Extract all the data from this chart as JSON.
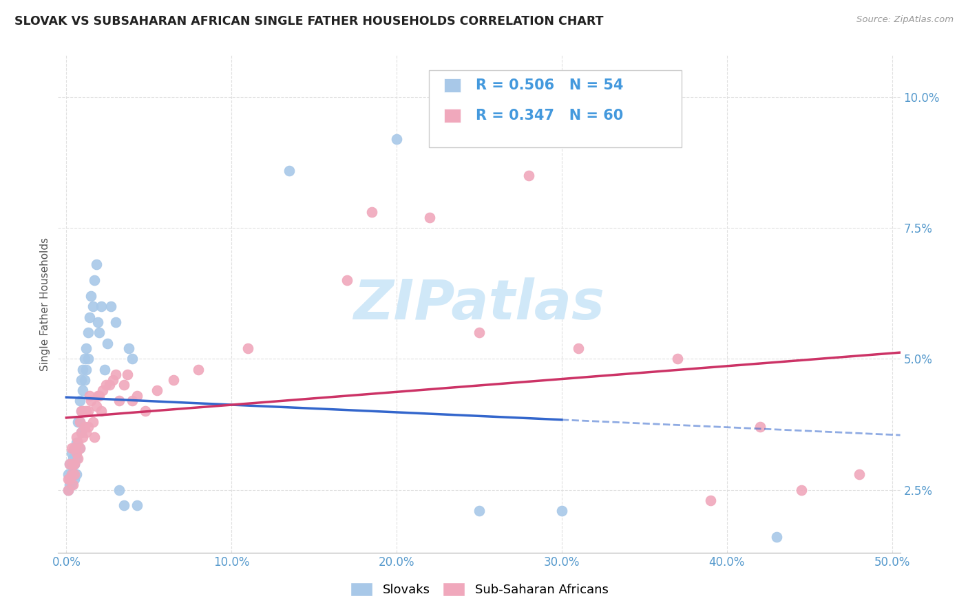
{
  "title": "SLOVAK VS SUBSAHARAN AFRICAN SINGLE FATHER HOUSEHOLDS CORRELATION CHART",
  "source": "Source: ZipAtlas.com",
  "ylabel": "Single Father Households",
  "xlim": [
    -0.005,
    0.505
  ],
  "ylim": [
    0.013,
    0.108
  ],
  "slovak_R": "0.506",
  "slovak_N": "54",
  "subsaharan_R": "0.347",
  "subsaharan_N": "60",
  "blue_scatter_color": "#a8c8e8",
  "pink_scatter_color": "#f0a8bc",
  "blue_line_color": "#3366cc",
  "pink_line_color": "#cc3366",
  "watermark_color": "#d0e8f8",
  "background_color": "#ffffff",
  "grid_color": "#dddddd",
  "stat_color": "#4499dd",
  "tick_color": "#5599cc",
  "title_color": "#222222",
  "ylabel_color": "#555555",
  "source_color": "#999999",
  "x_ticks": [
    0.0,
    0.1,
    0.2,
    0.3,
    0.4,
    0.5
  ],
  "x_tick_labels": [
    "0.0%",
    "10.0%",
    "20.0%",
    "30.0%",
    "40.0%",
    "50.0%"
  ],
  "y_ticks": [
    0.025,
    0.05,
    0.075,
    0.1
  ],
  "y_tick_labels": [
    "2.5%",
    "5.0%",
    "7.5%",
    "10.0%"
  ],
  "slovak_x": [
    0.001,
    0.001,
    0.002,
    0.002,
    0.003,
    0.003,
    0.003,
    0.004,
    0.004,
    0.005,
    0.005,
    0.005,
    0.005,
    0.006,
    0.006,
    0.006,
    0.007,
    0.007,
    0.008,
    0.008,
    0.008,
    0.009,
    0.009,
    0.009,
    0.01,
    0.01,
    0.011,
    0.011,
    0.012,
    0.012,
    0.013,
    0.013,
    0.014,
    0.015,
    0.016,
    0.017,
    0.018,
    0.019,
    0.02,
    0.021,
    0.023,
    0.025,
    0.027,
    0.03,
    0.032,
    0.035,
    0.038,
    0.04,
    0.043,
    0.135,
    0.2,
    0.25,
    0.3,
    0.43
  ],
  "slovak_y": [
    0.025,
    0.028,
    0.026,
    0.03,
    0.028,
    0.032,
    0.026,
    0.031,
    0.028,
    0.03,
    0.033,
    0.03,
    0.027,
    0.034,
    0.031,
    0.028,
    0.038,
    0.033,
    0.042,
    0.038,
    0.033,
    0.046,
    0.04,
    0.036,
    0.048,
    0.044,
    0.05,
    0.046,
    0.052,
    0.048,
    0.055,
    0.05,
    0.058,
    0.062,
    0.06,
    0.065,
    0.068,
    0.057,
    0.055,
    0.06,
    0.048,
    0.053,
    0.06,
    0.057,
    0.025,
    0.022,
    0.052,
    0.05,
    0.022,
    0.086,
    0.092,
    0.021,
    0.021,
    0.016
  ],
  "subsaharan_x": [
    0.001,
    0.001,
    0.002,
    0.002,
    0.003,
    0.003,
    0.004,
    0.004,
    0.005,
    0.005,
    0.005,
    0.006,
    0.006,
    0.007,
    0.007,
    0.008,
    0.008,
    0.009,
    0.009,
    0.01,
    0.01,
    0.011,
    0.012,
    0.012,
    0.013,
    0.013,
    0.014,
    0.015,
    0.016,
    0.017,
    0.018,
    0.019,
    0.02,
    0.021,
    0.022,
    0.024,
    0.026,
    0.028,
    0.03,
    0.032,
    0.035,
    0.037,
    0.04,
    0.043,
    0.048,
    0.055,
    0.065,
    0.08,
    0.11,
    0.17,
    0.185,
    0.22,
    0.25,
    0.28,
    0.31,
    0.37,
    0.39,
    0.42,
    0.445,
    0.48
  ],
  "subsaharan_y": [
    0.025,
    0.027,
    0.03,
    0.027,
    0.028,
    0.033,
    0.026,
    0.03,
    0.03,
    0.033,
    0.028,
    0.035,
    0.032,
    0.034,
    0.031,
    0.038,
    0.033,
    0.04,
    0.036,
    0.035,
    0.04,
    0.037,
    0.04,
    0.036,
    0.04,
    0.037,
    0.043,
    0.042,
    0.038,
    0.035,
    0.041,
    0.043,
    0.043,
    0.04,
    0.044,
    0.045,
    0.045,
    0.046,
    0.047,
    0.042,
    0.045,
    0.047,
    0.042,
    0.043,
    0.04,
    0.044,
    0.046,
    0.048,
    0.052,
    0.065,
    0.078,
    0.077,
    0.055,
    0.085,
    0.052,
    0.05,
    0.023,
    0.037,
    0.025,
    0.028
  ]
}
